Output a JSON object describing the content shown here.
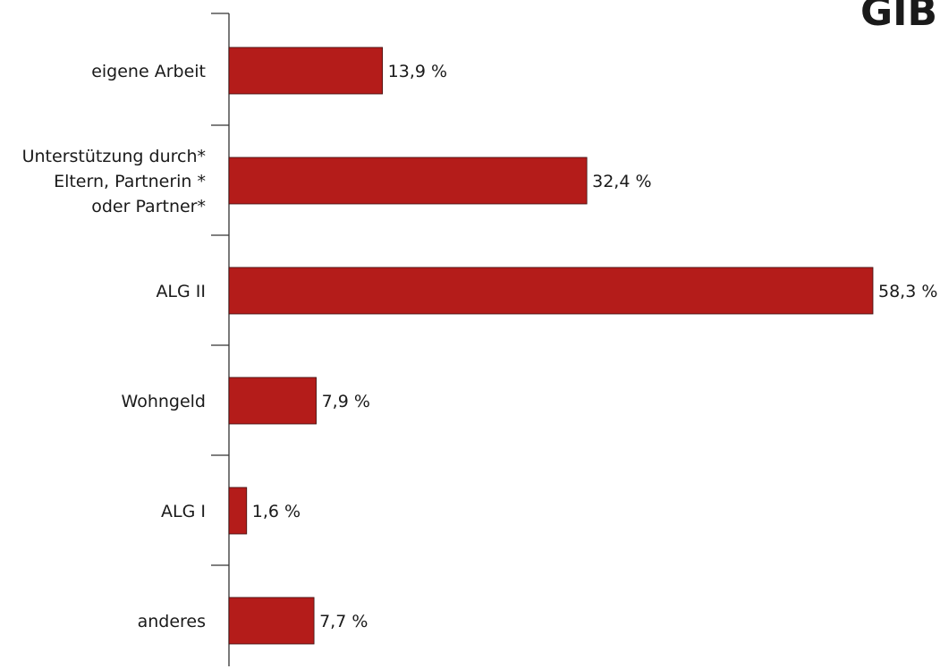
{
  "logo_text": "GIB",
  "chart_data": {
    "type": "bar",
    "orientation": "horizontal",
    "categories": [
      [
        "eigene Arbeit"
      ],
      [
        "Unterstützung durch*",
        "Eltern, Partnerin *",
        "oder Partner*"
      ],
      [
        "ALG II"
      ],
      [
        "Wohngeld"
      ],
      [
        "ALG I"
      ],
      [
        "anderes"
      ]
    ],
    "values": [
      13.9,
      32.4,
      58.3,
      7.9,
      1.6,
      7.7
    ],
    "value_labels": [
      "13,9 %",
      "32,4 %",
      "58,3 %",
      "7,9 %",
      "1,6 %",
      "7,7 %"
    ],
    "xlim": [
      0,
      58.3
    ],
    "bar_color": "#b41c1a",
    "bar_stroke": "#3a1010",
    "axis_color": "#333333",
    "title": "",
    "xlabel": "",
    "ylabel": "",
    "grid": false,
    "legend": false
  }
}
